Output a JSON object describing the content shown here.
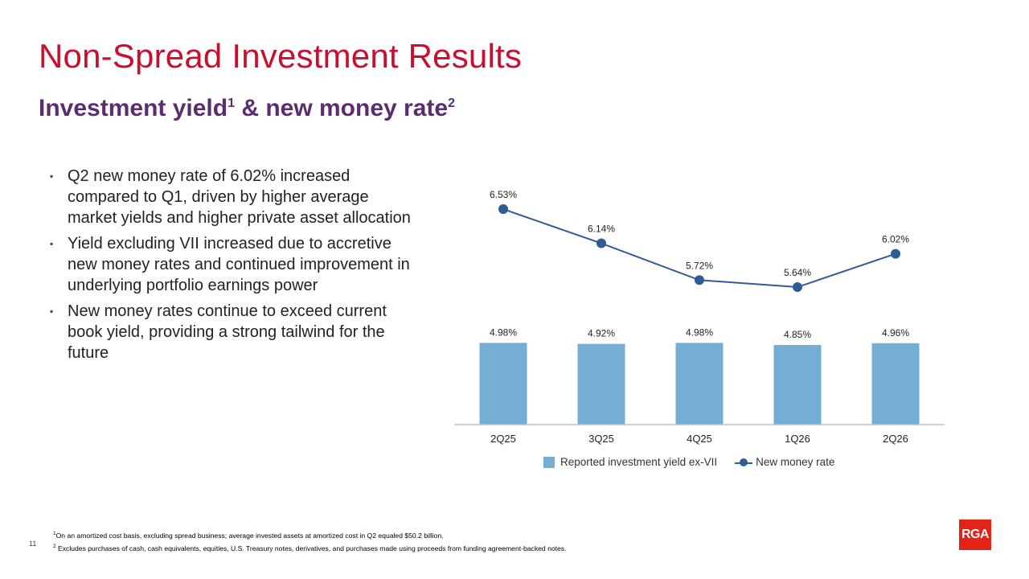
{
  "title": "Non-Spread Investment Results",
  "subtitle": {
    "text1": "Investment yield",
    "sup1": "1",
    "text2": " & new money rate",
    "sup2": "2"
  },
  "bullets": [
    "Q2 new money rate of 6.02% increased compared to Q1, driven by higher average market yields and higher private asset allocation",
    "Yield excluding VII increased due to accretive new money rates and continued improvement in underlying portfolio earnings power",
    "New money rates continue to exceed current book yield, providing a strong tailwind for the future"
  ],
  "bullet_marker": "▪",
  "chart_data": {
    "type": "bar",
    "categories": [
      "2Q25",
      "3Q25",
      "4Q25",
      "1Q26",
      "2Q26"
    ],
    "series": [
      {
        "name": "Reported investment yield ex-VII",
        "type": "bar",
        "values": [
          4.98,
          4.92,
          4.98,
          4.85,
          4.96
        ],
        "labels": [
          "4.98%",
          "4.92%",
          "4.98%",
          "4.85%",
          "4.96%"
        ],
        "color": "#74aed4"
      },
      {
        "name": "New money rate",
        "type": "line",
        "values": [
          6.53,
          6.14,
          5.72,
          5.64,
          6.02
        ],
        "labels": [
          "6.53%",
          "6.14%",
          "5.72%",
          "5.64%",
          "6.02%"
        ],
        "color": "#2f5c96"
      }
    ],
    "legend_position": "bottom",
    "grid": false
  },
  "footnotes": [
    {
      "sup": "1",
      "text": "On an amortized cost basis, excluding spread business; average invested assets at amortized cost in Q2 equaled $50.2 billion."
    },
    {
      "sup": "2",
      "text": " Excludes purchases of cash, cash equivalents, equities, U.S. Treasury notes, derivatives, and purchases made using proceeds from funding agreement-backed notes."
    }
  ],
  "page_number": "11",
  "logo_text": "RGA",
  "colors": {
    "title": "#c8102e",
    "subtitle": "#5b2c6f",
    "bar": "#74aed4",
    "line": "#2f5c96",
    "logo": "#e2231a"
  }
}
